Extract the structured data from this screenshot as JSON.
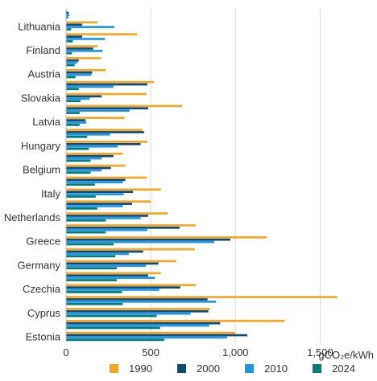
{
  "chart_data": {
    "type": "bar",
    "orientation": "horizontal",
    "unit_label": "gCO₂e/kWh",
    "xlim": [
      0,
      1750
    ],
    "xticks": [
      0,
      500,
      1000,
      1500
    ],
    "grid": true,
    "legend_position": "bottom",
    "series": [
      {
        "name": "1990",
        "color": "#f5a623"
      },
      {
        "name": "2000",
        "color": "#0e4a7a"
      },
      {
        "name": "2010",
        "color": "#1e98e6"
      },
      {
        "name": "2024",
        "color": "#007e73"
      }
    ],
    "rows": [
      {
        "label": "",
        "values": [
          5,
          15,
          20,
          12
        ]
      },
      {
        "label": "Lithuania",
        "values": [
          185,
          95,
          285,
          30
        ]
      },
      {
        "label": "",
        "values": [
          420,
          95,
          230,
          40
        ]
      },
      {
        "label": "Finland",
        "values": [
          185,
          160,
          215,
          35
        ]
      },
      {
        "label": "",
        "values": [
          205,
          75,
          65,
          50
        ]
      },
      {
        "label": "Austria",
        "values": [
          235,
          155,
          150,
          55
        ]
      },
      {
        "label": "",
        "values": [
          520,
          480,
          280,
          75
        ]
      },
      {
        "label": "Slovakia",
        "values": [
          475,
          210,
          140,
          85
        ]
      },
      {
        "label": "",
        "values": [
          685,
          485,
          375,
          80
        ]
      },
      {
        "label": "Latvia",
        "values": [
          345,
          115,
          120,
          80
        ]
      },
      {
        "label": "",
        "values": [
          450,
          460,
          260,
          125
        ]
      },
      {
        "label": "Hungary",
        "values": [
          480,
          440,
          305,
          135
        ]
      },
      {
        "label": "",
        "values": [
          335,
          280,
          210,
          145
        ]
      },
      {
        "label": "Belgium",
        "values": [
          350,
          265,
          210,
          145
        ]
      },
      {
        "label": "",
        "values": [
          475,
          350,
          335,
          170
        ]
      },
      {
        "label": "Italy",
        "values": [
          560,
          395,
          340,
          175
        ]
      },
      {
        "label": "",
        "values": [
          500,
          390,
          335,
          185
        ]
      },
      {
        "label": "Netherlands",
        "values": [
          600,
          485,
          440,
          235
        ]
      },
      {
        "label": "",
        "values": [
          765,
          670,
          480,
          235
        ]
      },
      {
        "label": "Greece",
        "values": [
          1185,
          970,
          875,
          280
        ]
      },
      {
        "label": "",
        "values": [
          760,
          455,
          370,
          290
        ]
      },
      {
        "label": "Germany",
        "values": [
          650,
          545,
          470,
          300
        ]
      },
      {
        "label": "",
        "values": [
          560,
          485,
          525,
          300
        ]
      },
      {
        "label": "Czechia",
        "values": [
          765,
          675,
          550,
          330
        ]
      },
      {
        "label": "",
        "values": [
          1600,
          835,
          885,
          335
        ]
      },
      {
        "label": "Cyprus",
        "values": [
          850,
          840,
          735,
          535
        ]
      },
      {
        "label": "",
        "values": [
          1290,
          910,
          845,
          555
        ]
      },
      {
        "label": "Estonia",
        "values": [
          1000,
          1070,
          950,
          580
        ]
      }
    ]
  }
}
